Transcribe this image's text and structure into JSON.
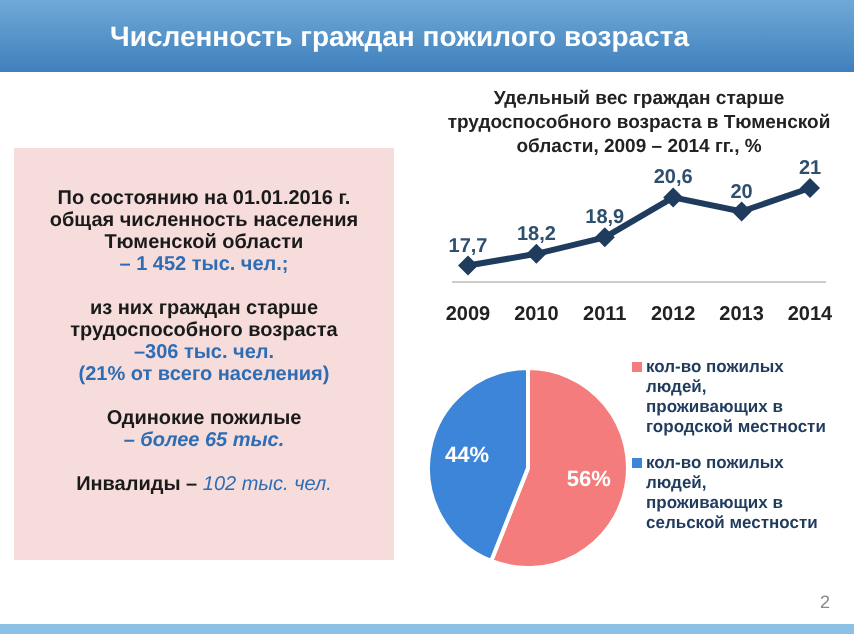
{
  "chart_data": [
    {
      "type": "other",
      "title": "Численность граждан пожилого возраста",
      "annotations": [
        "По состоянию на 01.01.2016 г. общая  численность населения Тюменской области",
        "– 1  452 тыс. чел.;",
        "из них граждан старше трудоспособного возраста",
        "–306 тыс. чел.",
        "(21% от всего населения)",
        "Одинокие пожилые",
        "– более 65 тыс.",
        "Инвалиды –",
        "102 тыс. чел.",
        "2"
      ]
    },
    {
      "type": "line",
      "title": "Удельный вес граждан старше трудоспособного возраста в Тюменской области, 2009 – 2014 гг., %",
      "categories": [
        "2009",
        "2010",
        "2011",
        "2012",
        "2013",
        "2014"
      ],
      "series": [
        {
          "color": "#1f3b5e",
          "values": [
            17.7,
            18.2,
            18.9,
            20.6,
            20,
            21
          ],
          "value_labels": [
            "17,7",
            "18,2",
            "18,9",
            "20,6",
            "20",
            "21"
          ]
        }
      ],
      "marker": "diamond",
      "tick_labels": "x"
    },
    {
      "type": "pie",
      "categories": [
        "кол-во пожилых людей, проживающих в городской местности",
        "кол-во пожилых людей, проживающих в сельской местности"
      ],
      "values": [
        56,
        44
      ],
      "colors": [
        "#f47c7c",
        "#3d85d8"
      ],
      "value_labels": [
        "56%",
        "44%"
      ],
      "legend": "right"
    }
  ]
}
